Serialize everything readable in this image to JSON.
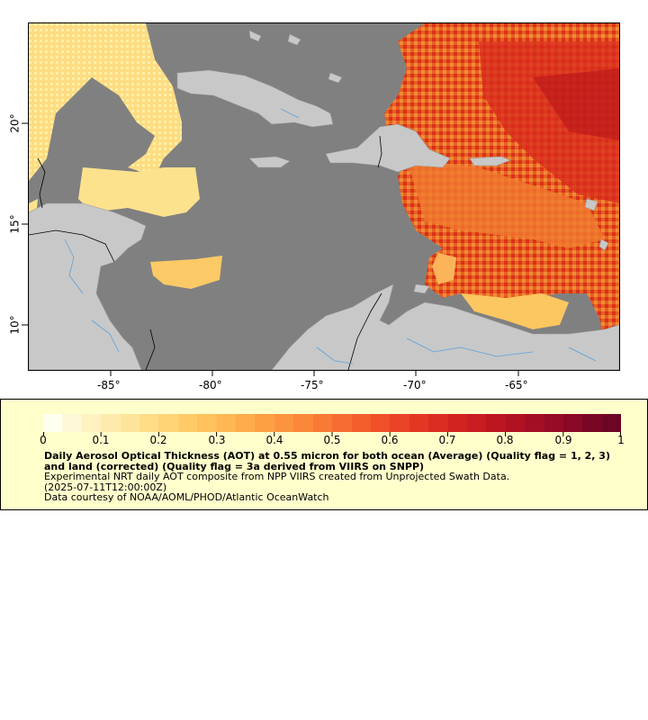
{
  "map": {
    "x_ticks": [
      "-85°",
      "-80°",
      "-75°",
      "-70°",
      "-65°"
    ],
    "y_ticks": [
      "20°",
      "15°",
      "10°"
    ],
    "colors": {
      "ocean_nodata": "#808080",
      "land": "#c8c8c8",
      "rivers": "#5aa0dc",
      "borders": "#000000"
    }
  },
  "legend": {
    "colorbar_ticks": [
      "0",
      "0.1",
      "0.2",
      "0.3",
      "0.4",
      "0.5",
      "0.6",
      "0.7",
      "0.8",
      "0.9",
      "1"
    ],
    "range": [
      0,
      1
    ],
    "title": "Daily Aerosol Optical Thickness (AOT) at 0.55 micron for both ocean (Average) (Quality flag = 1, 2, 3) and land (corrected) (Quality flag = 3a derived from VIIRS on SNPP)",
    "line1": "Experimental NRT daily AOT composite from NPP VIIRS created from Unprojected Swath Data.",
    "line2": "(2025-07-11T12:00:00Z)",
    "line3": "Data courtesy of NOAA/AOML/PHOD/Atlantic OceanWatch"
  }
}
